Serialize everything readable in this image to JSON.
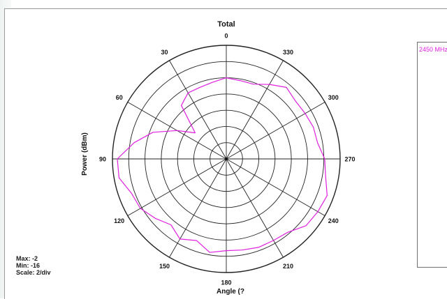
{
  "chart_data": {
    "type": "polar",
    "title": "Total",
    "xlabel": "Angle (?",
    "ylabel": "Power  (dBm)",
    "angle_ticks": [
      0,
      30,
      60,
      90,
      120,
      150,
      180,
      210,
      240,
      270,
      300,
      330
    ],
    "radial_range": [
      -16,
      -2
    ],
    "radial_step": 2,
    "grid": true,
    "series": [
      {
        "name": "2450 MHz",
        "color": "#e020e0",
        "angles": [
          0,
          10,
          20,
          30,
          40,
          50,
          60,
          70,
          80,
          90,
          100,
          110,
          120,
          130,
          140,
          150,
          160,
          170,
          180,
          190,
          200,
          210,
          220,
          230,
          240,
          250,
          260,
          270,
          280,
          290,
          300,
          310,
          320,
          330,
          340,
          350
        ],
        "values": [
          -6,
          -6.4,
          -6.6,
          -6.6,
          -7.4,
          -11,
          -9,
          -6.4,
          -4.5,
          -2.6,
          -2.6,
          -3.6,
          -3.8,
          -4.6,
          -5.4,
          -4.6,
          -5.3,
          -4.3,
          -4.7,
          -4.6,
          -4.4,
          -4.4,
          -4.2,
          -3.2,
          -3,
          -2.8,
          -3.6,
          -3.9,
          -4.6,
          -4.6,
          -4.8,
          -4.9,
          -4.5,
          -5.4,
          -6.2,
          -6.2
        ]
      }
    ]
  },
  "legend": {
    "label": "2450 MHz"
  },
  "stats": {
    "max": "Max: -2",
    "min": "Min: -16",
    "scale": "Scale: 2/div"
  }
}
